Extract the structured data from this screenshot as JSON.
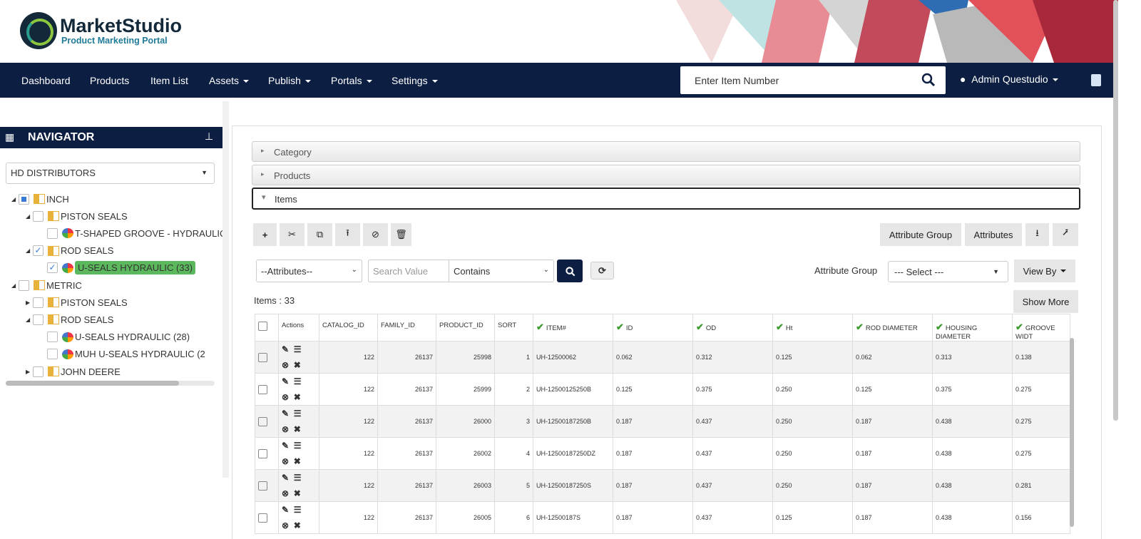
{
  "brand": {
    "title": "MarketStudio",
    "subtitle": "Product Marketing Portal"
  },
  "nav": {
    "items": [
      {
        "label": "Dashboard",
        "dropdown": false
      },
      {
        "label": "Products",
        "dropdown": false
      },
      {
        "label": "Item List",
        "dropdown": false
      },
      {
        "label": "Assets",
        "dropdown": true
      },
      {
        "label": "Publish",
        "dropdown": true
      },
      {
        "label": "Portals",
        "dropdown": true
      },
      {
        "label": "Settings",
        "dropdown": true
      }
    ],
    "search_placeholder": "Enter Item Number",
    "user": "Admin Questudio"
  },
  "navigator": {
    "title": "NAVIGATOR",
    "selected": "HD DISTRIBUTORS",
    "tree": [
      {
        "label": "INCH",
        "level": 0,
        "type": "folder",
        "expand": "open",
        "check": "partial"
      },
      {
        "label": "PISTON SEALS",
        "level": 1,
        "type": "folder",
        "expand": "open",
        "check": "none"
      },
      {
        "label": "T-SHAPED GROOVE - HYDRAULIC",
        "level": 2,
        "type": "product",
        "expand": "",
        "check": "none"
      },
      {
        "label": "ROD SEALS",
        "level": 1,
        "type": "folder",
        "expand": "open",
        "check": "checked"
      },
      {
        "label": "U-SEALS HYDRAULIC (33)",
        "level": 2,
        "type": "product",
        "expand": "",
        "check": "checked",
        "selected": true
      },
      {
        "label": "METRIC",
        "level": 0,
        "type": "folder",
        "expand": "open",
        "check": "none"
      },
      {
        "label": "PISTON SEALS",
        "level": 1,
        "type": "folder",
        "expand": "closed",
        "check": "none"
      },
      {
        "label": "ROD SEALS",
        "level": 1,
        "type": "folder",
        "expand": "open",
        "check": "none"
      },
      {
        "label": "U-SEALS HYDRAULIC (28)",
        "level": 2,
        "type": "product",
        "expand": "",
        "check": "none"
      },
      {
        "label": "MUH U-SEALS HYDRAULIC (2",
        "level": 2,
        "type": "product",
        "expand": "",
        "check": "none"
      },
      {
        "label": "JOHN DEERE",
        "level": 1,
        "type": "folder",
        "expand": "closed",
        "check": "none"
      }
    ]
  },
  "accordion": {
    "category": "Category",
    "products": "Products",
    "items": "Items"
  },
  "toolbar": {
    "attribute_group": "Attribute Group",
    "attributes": "Attributes"
  },
  "filter": {
    "attributes": "--Attributes--",
    "search_placeholder": "Search Value",
    "operator": "Contains",
    "attr_group_label": "Attribute Group",
    "attr_group_value": "--- Select ---",
    "view_by": "View By",
    "show_more": "Show More"
  },
  "items_count": "Items : 33",
  "grid": {
    "columns": [
      {
        "label": "Actions",
        "verified": false
      },
      {
        "label": "CATALOG_ID",
        "verified": false
      },
      {
        "label": "FAMILY_ID",
        "verified": false
      },
      {
        "label": "PRODUCT_ID",
        "verified": false
      },
      {
        "label": "SORT",
        "verified": false
      },
      {
        "label": "ITEM#",
        "verified": true
      },
      {
        "label": "ID",
        "verified": true
      },
      {
        "label": "OD",
        "verified": true
      },
      {
        "label": "Ht",
        "verified": true
      },
      {
        "label": "ROD DIAMETER",
        "verified": true
      },
      {
        "label": "HOUSING DIAMETER",
        "verified": true
      },
      {
        "label": "GROOVE WIDT",
        "verified": true
      }
    ],
    "rows": [
      [
        "122",
        "26137",
        "25998",
        "1",
        "UH-12500062",
        "0.062",
        "0.312",
        "0.125",
        "0.062",
        "0.313",
        "0.138"
      ],
      [
        "122",
        "26137",
        "25999",
        "2",
        "UH-12500125250B",
        "0.125",
        "0.375",
        "0.250",
        "0.125",
        "0.375",
        "0.275"
      ],
      [
        "122",
        "26137",
        "26000",
        "3",
        "UH-12500187250B",
        "0.187",
        "0.437",
        "0.250",
        "0.187",
        "0.438",
        "0.275"
      ],
      [
        "122",
        "26137",
        "26002",
        "4",
        "UH-12500187250DZ",
        "0.187",
        "0.437",
        "0.250",
        "0.187",
        "0.438",
        "0.275"
      ],
      [
        "122",
        "26137",
        "26003",
        "5",
        "UH-12500187250S",
        "0.187",
        "0.437",
        "0.250",
        "0.187",
        "0.438",
        "0.281"
      ],
      [
        "122",
        "26137",
        "26005",
        "6",
        "UH-12500187S",
        "0.187",
        "0.437",
        "0.125",
        "0.187",
        "0.438",
        "0.156"
      ]
    ]
  }
}
